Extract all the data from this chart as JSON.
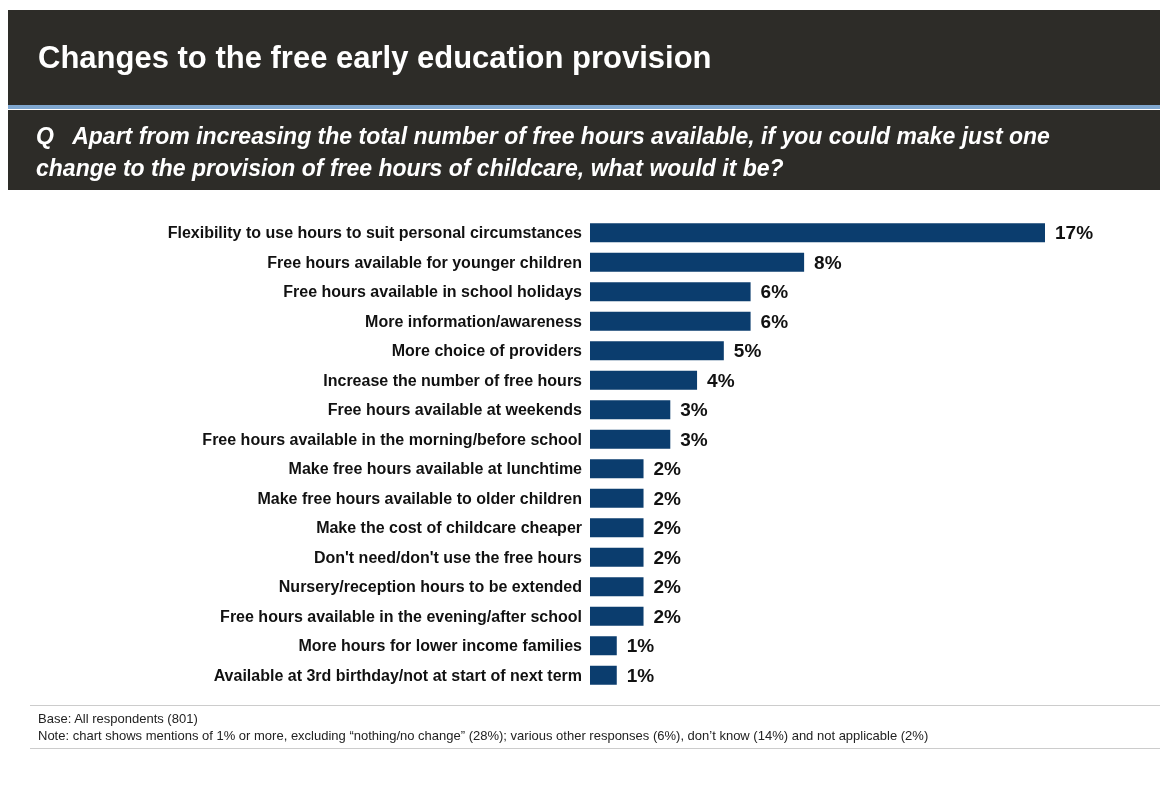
{
  "chart_data": {
    "type": "bar",
    "title": "Changes to the free early education provision",
    "subtitle": "Q   Apart from increasing the total number of free hours available, if you could make just one change to the provision of free hours of childcare, what would it be?",
    "orientation": "horizontal",
    "categories": [
      "Flexibility to use hours to suit personal circumstances",
      "Free hours available for younger children",
      "Free hours available in school holidays",
      "More information/awareness",
      "More choice of providers",
      "Increase the number of free hours",
      "Free hours available at weekends",
      "Free hours available in the morning/before school",
      "Make free hours available at lunchtime",
      "Make free hours available to older children",
      "Make the cost of childcare cheaper",
      "Don't need/don't use the free hours",
      "Nursery/reception hours to be extended",
      "Free hours available in the evening/after school",
      "More hours for lower income families",
      "Available at 3rd birthday/not at start of next term"
    ],
    "values": [
      17,
      8,
      6,
      6,
      5,
      4,
      3,
      3,
      2,
      2,
      2,
      2,
      2,
      2,
      1,
      1
    ],
    "value_labels": [
      "17%",
      "8%",
      "6%",
      "6%",
      "5%",
      "4%",
      "3%",
      "3%",
      "2%",
      "2%",
      "2%",
      "2%",
      "2%",
      "2%",
      "1%",
      "1%"
    ],
    "color": "#0b3d6e",
    "annotations": [
      "Base: All respondents (801)",
      "Note: chart shows mentions of 1% or more, excluding “nothing/no change” (28%); various other responses (6%), don’t know (14%) and not applicable (2%)"
    ]
  }
}
